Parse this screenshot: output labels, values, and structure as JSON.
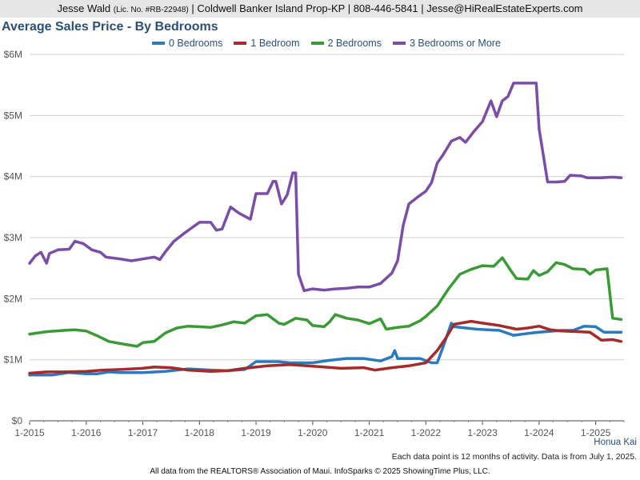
{
  "header": {
    "agent_name": "Jesse Wald",
    "license": "(Lic. No. #RB-22948)",
    "details": "| Coldwell Banker Island Prop-KP | 808-446-5841 | Jesse@HiRealEstateExperts.com"
  },
  "area_label": "Honua Kai",
  "footnote": "Each data point is 12 months of activity. Data is from July 1, 2025.",
  "credits": "All data from the REALTORS® Association of Maui. InfoSparks © 2025 ShowingTime Plus, LLC.",
  "chart_data": {
    "type": "line",
    "title": "Average Sales Price - By Bedrooms",
    "xlabel": "",
    "ylabel": "",
    "legend_position": "top",
    "grid": true,
    "xlim": [
      2015.0,
      2025.5
    ],
    "ylim": [
      0,
      6000000
    ],
    "x_ticks": [
      2015,
      2016,
      2017,
      2018,
      2019,
      2020,
      2021,
      2022,
      2023,
      2024,
      2025
    ],
    "x_tick_labels": [
      "1-2015",
      "1-2016",
      "1-2017",
      "1-2018",
      "1-2019",
      "1-2020",
      "1-2021",
      "1-2022",
      "1-2023",
      "1-2024",
      "1-2025"
    ],
    "y_ticks": [
      0,
      1000000,
      2000000,
      3000000,
      4000000,
      5000000,
      6000000
    ],
    "y_tick_labels": [
      "$0",
      "$1M",
      "$2M",
      "$3M",
      "$4M",
      "$5M",
      "$6M"
    ],
    "series": [
      {
        "name": "0 Bedrooms",
        "color": "#2a7ac0",
        "points": [
          [
            2015.0,
            750000
          ],
          [
            2015.4,
            750000
          ],
          [
            2015.7,
            790000
          ],
          [
            2016.0,
            770000
          ],
          [
            2016.2,
            770000
          ],
          [
            2016.4,
            800000
          ],
          [
            2016.6,
            790000
          ],
          [
            2017.0,
            790000
          ],
          [
            2017.4,
            810000
          ],
          [
            2017.6,
            830000
          ],
          [
            2017.8,
            850000
          ],
          [
            2018.2,
            830000
          ],
          [
            2018.5,
            820000
          ],
          [
            2018.8,
            840000
          ],
          [
            2019.0,
            970000
          ],
          [
            2019.4,
            970000
          ],
          [
            2019.6,
            950000
          ],
          [
            2020.0,
            950000
          ],
          [
            2020.3,
            990000
          ],
          [
            2020.6,
            1020000
          ],
          [
            2020.9,
            1020000
          ],
          [
            2021.2,
            980000
          ],
          [
            2021.4,
            1050000
          ],
          [
            2021.45,
            1150000
          ],
          [
            2021.5,
            1020000
          ],
          [
            2021.9,
            1020000
          ],
          [
            2022.1,
            950000
          ],
          [
            2022.2,
            950000
          ],
          [
            2022.3,
            1200000
          ],
          [
            2022.45,
            1600000
          ],
          [
            2022.5,
            1540000
          ],
          [
            2022.9,
            1500000
          ],
          [
            2023.3,
            1480000
          ],
          [
            2023.55,
            1400000
          ],
          [
            2023.8,
            1430000
          ],
          [
            2024.0,
            1450000
          ],
          [
            2024.4,
            1480000
          ],
          [
            2024.6,
            1480000
          ],
          [
            2024.8,
            1550000
          ],
          [
            2025.0,
            1540000
          ],
          [
            2025.15,
            1450000
          ],
          [
            2025.45,
            1450000
          ]
        ]
      },
      {
        "name": "1 Bedroom",
        "color": "#a52a2a",
        "points": [
          [
            2015.0,
            780000
          ],
          [
            2015.3,
            800000
          ],
          [
            2015.6,
            800000
          ],
          [
            2016.0,
            810000
          ],
          [
            2016.3,
            830000
          ],
          [
            2016.6,
            840000
          ],
          [
            2017.0,
            860000
          ],
          [
            2017.2,
            880000
          ],
          [
            2017.5,
            870000
          ],
          [
            2017.8,
            830000
          ],
          [
            2018.2,
            810000
          ],
          [
            2018.5,
            820000
          ],
          [
            2018.8,
            860000
          ],
          [
            2019.2,
            900000
          ],
          [
            2019.6,
            920000
          ],
          [
            2019.9,
            900000
          ],
          [
            2020.2,
            880000
          ],
          [
            2020.5,
            860000
          ],
          [
            2020.9,
            870000
          ],
          [
            2021.1,
            830000
          ],
          [
            2021.4,
            870000
          ],
          [
            2021.7,
            900000
          ],
          [
            2022.0,
            950000
          ],
          [
            2022.2,
            1150000
          ],
          [
            2022.35,
            1350000
          ],
          [
            2022.5,
            1580000
          ],
          [
            2022.8,
            1630000
          ],
          [
            2023.0,
            1600000
          ],
          [
            2023.3,
            1560000
          ],
          [
            2023.6,
            1500000
          ],
          [
            2023.8,
            1520000
          ],
          [
            2024.0,
            1550000
          ],
          [
            2024.2,
            1490000
          ],
          [
            2024.4,
            1470000
          ],
          [
            2024.7,
            1460000
          ],
          [
            2024.9,
            1450000
          ],
          [
            2025.1,
            1320000
          ],
          [
            2025.3,
            1330000
          ],
          [
            2025.45,
            1300000
          ]
        ]
      },
      {
        "name": "2 Bedrooms",
        "color": "#3a9a36",
        "points": [
          [
            2015.0,
            1420000
          ],
          [
            2015.3,
            1460000
          ],
          [
            2015.6,
            1480000
          ],
          [
            2015.8,
            1490000
          ],
          [
            2016.0,
            1470000
          ],
          [
            2016.2,
            1390000
          ],
          [
            2016.4,
            1300000
          ],
          [
            2016.7,
            1250000
          ],
          [
            2016.9,
            1220000
          ],
          [
            2017.0,
            1280000
          ],
          [
            2017.2,
            1300000
          ],
          [
            2017.4,
            1440000
          ],
          [
            2017.6,
            1520000
          ],
          [
            2017.8,
            1550000
          ],
          [
            2018.0,
            1540000
          ],
          [
            2018.2,
            1530000
          ],
          [
            2018.4,
            1570000
          ],
          [
            2018.6,
            1620000
          ],
          [
            2018.8,
            1600000
          ],
          [
            2019.0,
            1720000
          ],
          [
            2019.2,
            1740000
          ],
          [
            2019.4,
            1600000
          ],
          [
            2019.5,
            1580000
          ],
          [
            2019.7,
            1680000
          ],
          [
            2019.9,
            1650000
          ],
          [
            2020.0,
            1560000
          ],
          [
            2020.2,
            1540000
          ],
          [
            2020.3,
            1620000
          ],
          [
            2020.4,
            1740000
          ],
          [
            2020.6,
            1680000
          ],
          [
            2020.8,
            1650000
          ],
          [
            2021.0,
            1590000
          ],
          [
            2021.2,
            1670000
          ],
          [
            2021.3,
            1500000
          ],
          [
            2021.5,
            1530000
          ],
          [
            2021.7,
            1550000
          ],
          [
            2021.9,
            1640000
          ],
          [
            2022.0,
            1710000
          ],
          [
            2022.2,
            1880000
          ],
          [
            2022.4,
            2160000
          ],
          [
            2022.6,
            2400000
          ],
          [
            2022.8,
            2480000
          ],
          [
            2023.0,
            2540000
          ],
          [
            2023.2,
            2530000
          ],
          [
            2023.35,
            2670000
          ],
          [
            2023.5,
            2460000
          ],
          [
            2023.6,
            2330000
          ],
          [
            2023.8,
            2320000
          ],
          [
            2023.9,
            2460000
          ],
          [
            2024.0,
            2380000
          ],
          [
            2024.15,
            2440000
          ],
          [
            2024.3,
            2590000
          ],
          [
            2024.45,
            2560000
          ],
          [
            2024.6,
            2490000
          ],
          [
            2024.8,
            2480000
          ],
          [
            2024.9,
            2400000
          ],
          [
            2025.0,
            2470000
          ],
          [
            2025.2,
            2490000
          ],
          [
            2025.3,
            1680000
          ],
          [
            2025.45,
            1660000
          ]
        ]
      },
      {
        "name": "3 Bedrooms or More",
        "color": "#7a4ea6",
        "points": [
          [
            2015.0,
            2580000
          ],
          [
            2015.1,
            2700000
          ],
          [
            2015.2,
            2760000
          ],
          [
            2015.3,
            2580000
          ],
          [
            2015.35,
            2740000
          ],
          [
            2015.5,
            2800000
          ],
          [
            2015.7,
            2810000
          ],
          [
            2015.8,
            2940000
          ],
          [
            2015.95,
            2900000
          ],
          [
            2016.1,
            2800000
          ],
          [
            2016.25,
            2760000
          ],
          [
            2016.35,
            2680000
          ],
          [
            2016.6,
            2650000
          ],
          [
            2016.8,
            2620000
          ],
          [
            2017.0,
            2650000
          ],
          [
            2017.2,
            2680000
          ],
          [
            2017.3,
            2640000
          ],
          [
            2017.4,
            2770000
          ],
          [
            2017.55,
            2940000
          ],
          [
            2017.7,
            3050000
          ],
          [
            2017.85,
            3150000
          ],
          [
            2018.0,
            3250000
          ],
          [
            2018.2,
            3250000
          ],
          [
            2018.3,
            3120000
          ],
          [
            2018.4,
            3140000
          ],
          [
            2018.55,
            3500000
          ],
          [
            2018.7,
            3400000
          ],
          [
            2018.9,
            3300000
          ],
          [
            2019.0,
            3720000
          ],
          [
            2019.2,
            3720000
          ],
          [
            2019.3,
            3920000
          ],
          [
            2019.35,
            3920000
          ],
          [
            2019.45,
            3550000
          ],
          [
            2019.55,
            3700000
          ],
          [
            2019.65,
            4060000
          ],
          [
            2019.7,
            4060000
          ],
          [
            2019.75,
            2400000
          ],
          [
            2019.85,
            2130000
          ],
          [
            2020.0,
            2160000
          ],
          [
            2020.2,
            2140000
          ],
          [
            2020.4,
            2160000
          ],
          [
            2020.6,
            2170000
          ],
          [
            2020.8,
            2190000
          ],
          [
            2021.0,
            2190000
          ],
          [
            2021.2,
            2250000
          ],
          [
            2021.4,
            2420000
          ],
          [
            2021.5,
            2620000
          ],
          [
            2021.6,
            3200000
          ],
          [
            2021.7,
            3550000
          ],
          [
            2021.85,
            3660000
          ],
          [
            2022.0,
            3760000
          ],
          [
            2022.1,
            3900000
          ],
          [
            2022.2,
            4220000
          ],
          [
            2022.3,
            4350000
          ],
          [
            2022.45,
            4580000
          ],
          [
            2022.6,
            4640000
          ],
          [
            2022.7,
            4560000
          ],
          [
            2022.85,
            4740000
          ],
          [
            2023.0,
            4900000
          ],
          [
            2023.15,
            5240000
          ],
          [
            2023.25,
            4980000
          ],
          [
            2023.35,
            5240000
          ],
          [
            2023.45,
            5310000
          ],
          [
            2023.55,
            5530000
          ],
          [
            2023.75,
            5530000
          ],
          [
            2023.95,
            5530000
          ],
          [
            2024.0,
            4780000
          ],
          [
            2024.15,
            3910000
          ],
          [
            2024.3,
            3910000
          ],
          [
            2024.45,
            3920000
          ],
          [
            2024.55,
            4020000
          ],
          [
            2024.75,
            4010000
          ],
          [
            2024.85,
            3980000
          ],
          [
            2025.1,
            3980000
          ],
          [
            2025.3,
            3990000
          ],
          [
            2025.45,
            3980000
          ]
        ]
      }
    ]
  }
}
